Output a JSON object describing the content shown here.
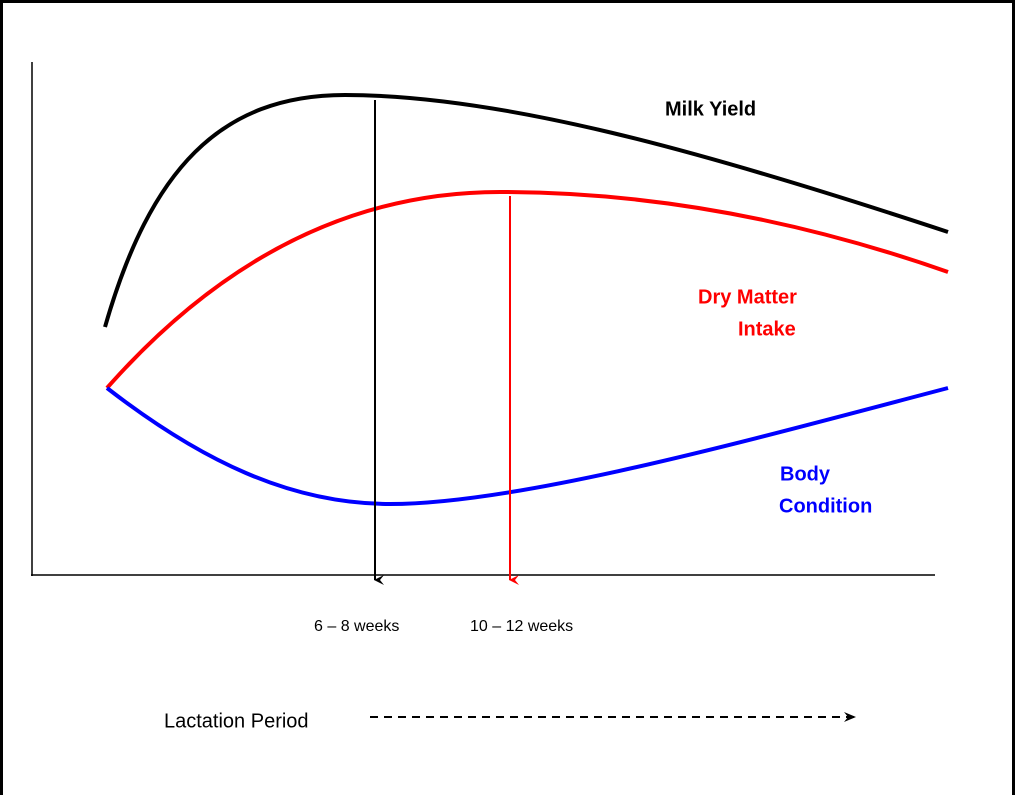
{
  "curves": [
    {
      "label": [
        "Milk Yield"
      ]
    },
    {
      "label": [
        "Dry Matter",
        "Intake"
      ]
    },
    {
      "label": [
        "Body",
        "Condition"
      ]
    }
  ],
  "markers": [
    "6 – 8 weeks",
    "10 – 12 weeks"
  ],
  "x_axis_label": "Lactation Period"
}
